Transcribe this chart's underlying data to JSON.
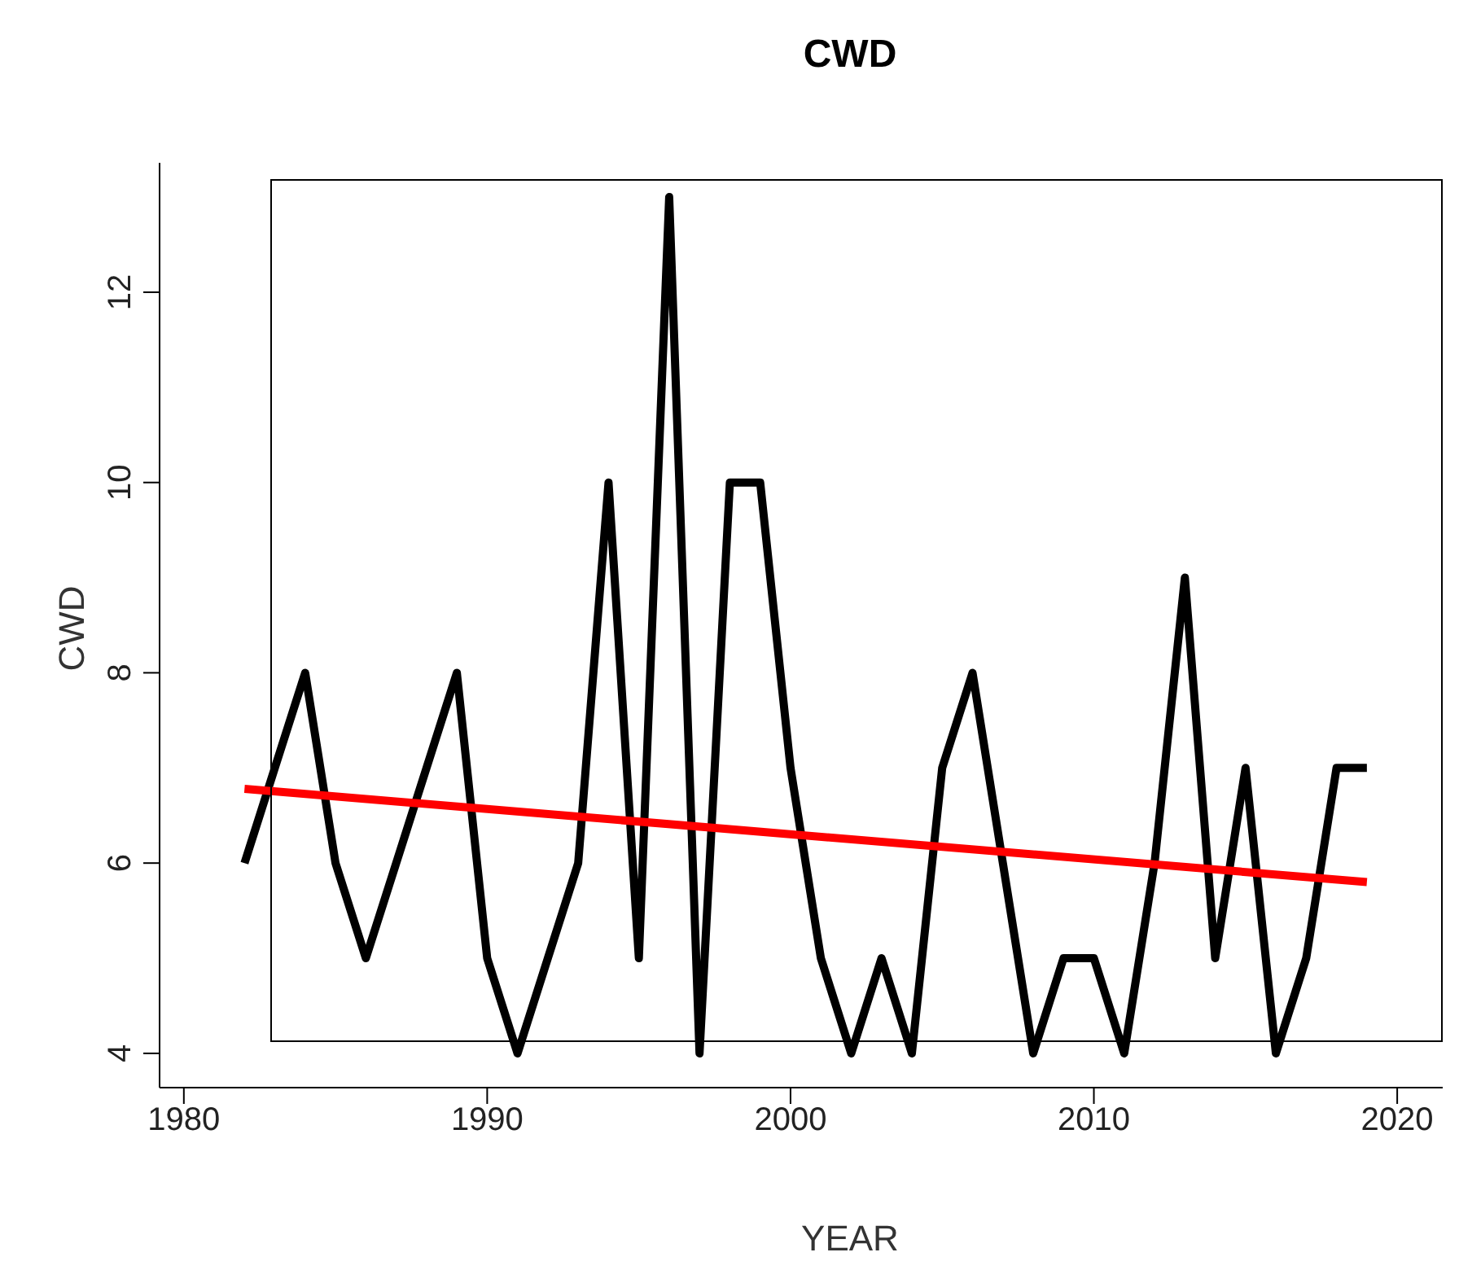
{
  "chart_data": {
    "type": "line",
    "title": "CWD",
    "xlabel": "YEAR",
    "ylabel": "CWD",
    "x": [
      1982,
      1983,
      1984,
      1985,
      1986,
      1987,
      1988,
      1989,
      1990,
      1991,
      1992,
      1993,
      1994,
      1995,
      1996,
      1997,
      1998,
      1999,
      2000,
      2001,
      2002,
      2003,
      2004,
      2005,
      2006,
      2007,
      2008,
      2009,
      2010,
      2011,
      2012,
      2013,
      2014,
      2015,
      2016,
      2017,
      2018,
      2019
    ],
    "series": [
      {
        "color": "#000000",
        "values": [
          6,
          7,
          8,
          6,
          5,
          6,
          7,
          8,
          5,
          4,
          5,
          6,
          10,
          5,
          13,
          4,
          10,
          10,
          7,
          5,
          4,
          5,
          4,
          7,
          8,
          6,
          4,
          5,
          5,
          4,
          6,
          9,
          5,
          7,
          4,
          5,
          7,
          7
        ]
      },
      {
        "type": "line",
        "color": "#ff0000",
        "x": [
          1982,
          2019
        ],
        "values": [
          6.78,
          5.8
        ]
      }
    ],
    "xlim": [
      1979.2,
      2021.5
    ],
    "xticks": [
      1980,
      1990,
      2000,
      2010,
      2020
    ],
    "ylim": [
      3.64,
      13.36
    ],
    "yticks": [
      4,
      6,
      8,
      10,
      12
    ],
    "grid": false,
    "legend": false,
    "marker": "none",
    "line_style": "solid"
  }
}
